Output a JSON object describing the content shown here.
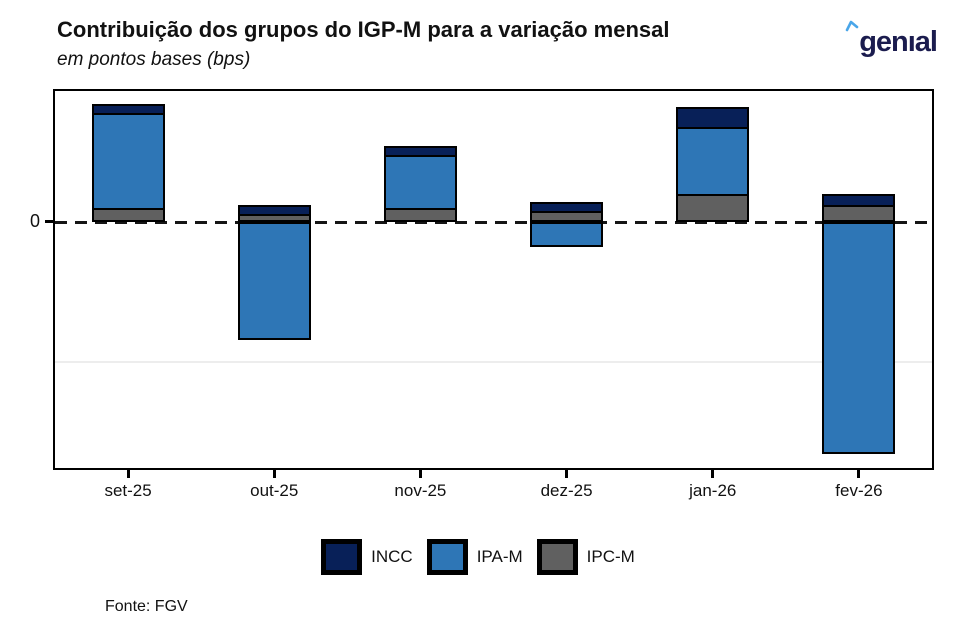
{
  "header": {
    "title": "Contribuição dos grupos do IGP-M para a variação mensal",
    "subtitle": "em pontos bases (bps)",
    "brand": "genıal"
  },
  "chart_data": {
    "type": "bar",
    "stacked": true,
    "title": "Contribuição dos grupos do IGP-M para a variação mensal",
    "unit": "em pontos bases (bps)",
    "categories": [
      "set-25",
      "out-25",
      "nov-25",
      "dez-25",
      "jan-26",
      "fev-26"
    ],
    "series": [
      {
        "name": "INCC",
        "color": "#082058",
        "values": [
          3,
          3,
          3,
          3,
          7,
          4
        ]
      },
      {
        "name": "IPA-M",
        "color": "#2e76b6",
        "values": [
          34,
          -42,
          19,
          -9,
          24,
          -83
        ]
      },
      {
        "name": "IPC-M",
        "color": "#606060",
        "values": [
          5,
          3,
          5,
          4,
          10,
          6
        ]
      }
    ],
    "stack_order_from_zero": [
      "IPC-M",
      "IPA-M",
      "INCC"
    ],
    "y_axis": {
      "zero_label": "0",
      "unlabeled_gridlines_bps": [
        -50
      ],
      "range_bps": [
        -89,
        47
      ]
    },
    "zero_line_style": "dashed",
    "legend_position": "bottom",
    "grid": "minimal"
  },
  "legend": {
    "items": [
      "INCC",
      "IPA-M",
      "IPC-M"
    ]
  },
  "footer": {
    "source": "Fonte: FGV"
  },
  "colors": {
    "accent_blue": "#4aa6e9",
    "logo_navy": "#1b1c4e",
    "axis": "#000000"
  }
}
